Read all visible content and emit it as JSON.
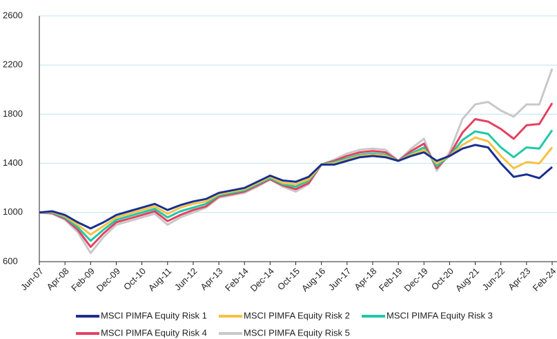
{
  "chart_data": {
    "type": "line",
    "categories": [
      "Jun-07",
      null,
      "Apr-08",
      null,
      "Feb-09",
      null,
      "Dec-09",
      null,
      "Oct-10",
      null,
      "Aug-11",
      null,
      "Jun-12",
      null,
      "Apr-13",
      null,
      "Feb-14",
      null,
      "Dec-14",
      null,
      "Oct-15",
      null,
      "Aug-16",
      null,
      "Jun-17",
      null,
      "Apr-18",
      null,
      "Feb-19",
      null,
      "Dec-19",
      null,
      "Oct-20",
      null,
      "Aug-21",
      null,
      "Jun-22",
      null,
      "Apr-23",
      null,
      "Feb-24"
    ],
    "series": [
      {
        "name": "MSCI PIMFA Equity Risk 1",
        "color": "#1a2f8f",
        "values": [
          1000,
          1010,
          980,
          920,
          870,
          920,
          980,
          1010,
          1040,
          1070,
          1020,
          1060,
          1090,
          1110,
          1160,
          1180,
          1200,
          1250,
          1300,
          1260,
          1250,
          1290,
          1390,
          1390,
          1420,
          1450,
          1460,
          1450,
          1420,
          1460,
          1490,
          1420,
          1460,
          1520,
          1550,
          1530,
          1400,
          1290,
          1310,
          1280,
          1370
        ]
      },
      {
        "name": "MSCI PIMFA Equity Risk 2",
        "color": "#f5c242",
        "values": [
          1000,
          1005,
          970,
          900,
          820,
          890,
          960,
          990,
          1020,
          1050,
          990,
          1040,
          1070,
          1090,
          1150,
          1170,
          1190,
          1240,
          1290,
          1240,
          1230,
          1270,
          1390,
          1400,
          1430,
          1460,
          1470,
          1460,
          1420,
          1470,
          1510,
          1400,
          1460,
          1550,
          1610,
          1580,
          1460,
          1360,
          1410,
          1400,
          1530
        ]
      },
      {
        "name": "MSCI PIMFA Equity Risk 3",
        "color": "#1fc9a8",
        "values": [
          1000,
          1000,
          960,
          880,
          770,
          860,
          940,
          970,
          1000,
          1030,
          960,
          1010,
          1040,
          1070,
          1140,
          1160,
          1180,
          1230,
          1280,
          1230,
          1210,
          1260,
          1390,
          1410,
          1440,
          1470,
          1480,
          1470,
          1420,
          1480,
          1530,
          1380,
          1460,
          1590,
          1660,
          1640,
          1530,
          1450,
          1530,
          1520,
          1670
        ]
      },
      {
        "name": "MSCI PIMFA Equity Risk 4",
        "color": "#e5415f",
        "values": [
          1000,
          995,
          950,
          860,
          720,
          830,
          920,
          950,
          980,
          1010,
          930,
          980,
          1020,
          1050,
          1130,
          1150,
          1170,
          1220,
          1270,
          1220,
          1190,
          1240,
          1390,
          1420,
          1460,
          1490,
          1500,
          1490,
          1420,
          1500,
          1560,
          1360,
          1470,
          1650,
          1760,
          1740,
          1680,
          1600,
          1710,
          1720,
          1890
        ]
      },
      {
        "name": "MSCI PIMFA Equity Risk 5",
        "color": "#c8c8c8",
        "values": [
          1000,
          990,
          940,
          840,
          670,
          800,
          900,
          930,
          960,
          990,
          900,
          960,
          1000,
          1040,
          1120,
          1140,
          1160,
          1210,
          1270,
          1210,
          1170,
          1230,
          1390,
          1430,
          1480,
          1510,
          1520,
          1510,
          1420,
          1520,
          1600,
          1340,
          1490,
          1760,
          1880,
          1900,
          1830,
          1780,
          1880,
          1880,
          2170
        ]
      }
    ],
    "ylim": [
      600,
      2600
    ],
    "yticks": [
      600,
      1000,
      1400,
      1800,
      2200,
      2600
    ],
    "grid": true
  }
}
